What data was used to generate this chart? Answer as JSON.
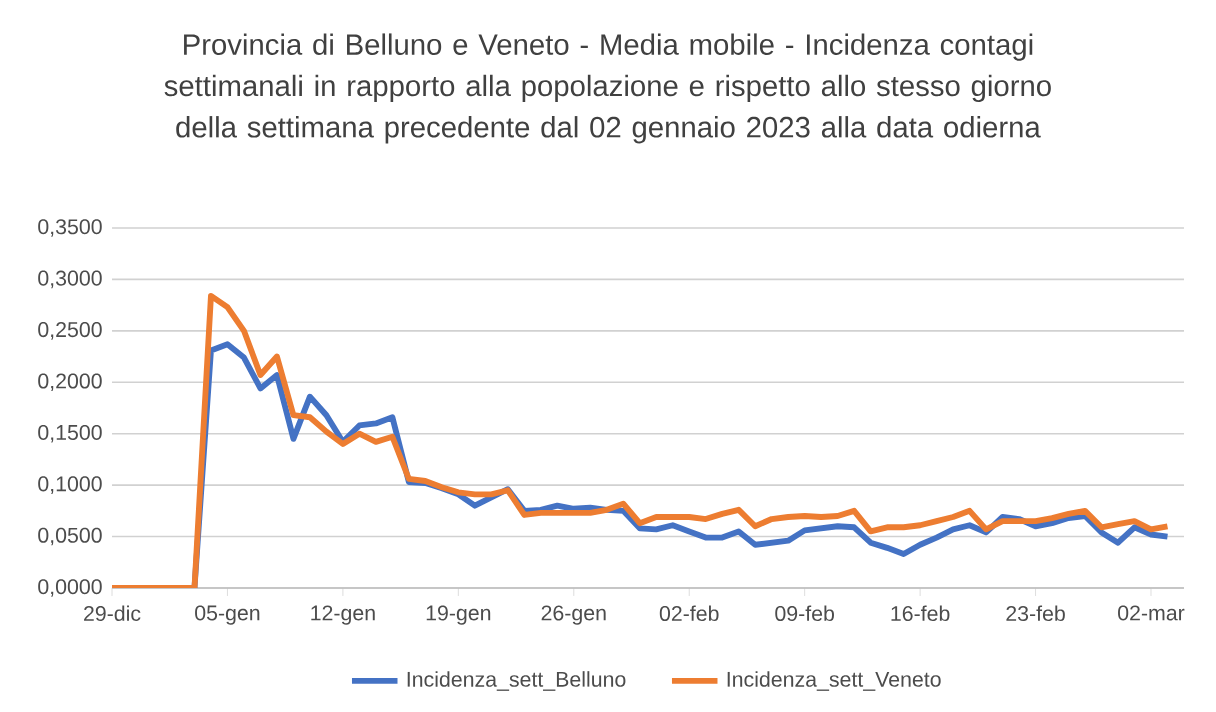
{
  "chart_data": {
    "type": "line",
    "title": "Provincia di Belluno e Veneto -  Media mobile - Incidenza contagi settimanali in rapporto alla popolazione e rispetto allo stesso giorno della settimana precedente dal 02 gennaio 2023 alla data odierna",
    "x": [
      "2022-12-29",
      "2022-12-30",
      "2022-12-31",
      "2023-01-01",
      "2023-01-02",
      "2023-01-03",
      "2023-01-04",
      "2023-01-05",
      "2023-01-06",
      "2023-01-07",
      "2023-01-08",
      "2023-01-09",
      "2023-01-10",
      "2023-01-11",
      "2023-01-12",
      "2023-01-13",
      "2023-01-14",
      "2023-01-15",
      "2023-01-16",
      "2023-01-17",
      "2023-01-18",
      "2023-01-19",
      "2023-01-20",
      "2023-01-21",
      "2023-01-22",
      "2023-01-23",
      "2023-01-24",
      "2023-01-25",
      "2023-01-26",
      "2023-01-27",
      "2023-01-28",
      "2023-01-29",
      "2023-01-30",
      "2023-01-31",
      "2023-02-01",
      "2023-02-02",
      "2023-02-03",
      "2023-02-04",
      "2023-02-05",
      "2023-02-06",
      "2023-02-07",
      "2023-02-08",
      "2023-02-09",
      "2023-02-10",
      "2023-02-11",
      "2023-02-12",
      "2023-02-13",
      "2023-02-14",
      "2023-02-15",
      "2023-02-16",
      "2023-02-17",
      "2023-02-18",
      "2023-02-19",
      "2023-02-20",
      "2023-02-21",
      "2023-02-22",
      "2023-02-23",
      "2023-02-24",
      "2023-02-25",
      "2023-02-26",
      "2023-02-27",
      "2023-02-28",
      "2023-03-01",
      "2023-03-02",
      "2023-03-03"
    ],
    "series": [
      {
        "name": "Incidenza_sett_Belluno",
        "color": "#4472c4",
        "values": [
          null,
          null,
          null,
          null,
          0,
          0,
          0.231,
          0.237,
          0.224,
          0.194,
          0.207,
          0.145,
          0.186,
          0.168,
          0.142,
          0.158,
          0.16,
          0.166,
          0.103,
          0.102,
          0.097,
          0.091,
          0.08,
          0.088,
          0.096,
          0.075,
          0.076,
          0.08,
          0.077,
          0.078,
          0.076,
          0.075,
          0.058,
          0.057,
          0.061,
          0.055,
          0.049,
          0.049,
          0.055,
          0.042,
          0.044,
          0.046,
          0.056,
          0.058,
          0.06,
          0.059,
          0.044,
          0.039,
          0.033,
          0.042,
          0.049,
          0.057,
          0.061,
          0.054,
          0.069,
          0.067,
          0.06,
          0.063,
          0.068,
          0.07,
          0.054,
          0.044,
          0.059,
          0.052,
          0.05
        ]
      },
      {
        "name": "Incidenza_sett_Veneto",
        "color": "#ed7d31",
        "values": [
          0,
          0,
          0,
          0,
          0,
          0,
          0.284,
          0.273,
          0.25,
          0.207,
          0.225,
          0.168,
          0.166,
          0.152,
          0.14,
          0.15,
          0.142,
          0.147,
          0.106,
          0.104,
          0.098,
          0.093,
          0.091,
          0.091,
          0.095,
          0.071,
          0.073,
          0.073,
          0.073,
          0.073,
          0.076,
          0.082,
          0.063,
          0.069,
          0.069,
          0.069,
          0.067,
          0.072,
          0.076,
          0.06,
          0.067,
          0.069,
          0.07,
          0.069,
          0.07,
          0.075,
          0.055,
          0.059,
          0.059,
          0.061,
          0.065,
          0.069,
          0.075,
          0.057,
          0.065,
          0.065,
          0.065,
          0.068,
          0.072,
          0.075,
          0.059,
          0.062,
          0.065,
          0.057,
          0.06
        ]
      }
    ],
    "xlim": [
      "2022-12-29",
      "2023-03-04"
    ],
    "xticks": [
      {
        "value": "2022-12-29",
        "label": "29-dic"
      },
      {
        "value": "2023-01-05",
        "label": "05-gen"
      },
      {
        "value": "2023-01-12",
        "label": "12-gen"
      },
      {
        "value": "2023-01-19",
        "label": "19-gen"
      },
      {
        "value": "2023-01-26",
        "label": "26-gen"
      },
      {
        "value": "2023-02-02",
        "label": "02-feb"
      },
      {
        "value": "2023-02-09",
        "label": "09-feb"
      },
      {
        "value": "2023-02-16",
        "label": "16-feb"
      },
      {
        "value": "2023-02-23",
        "label": "23-feb"
      },
      {
        "value": "2023-03-02",
        "label": "02-mar"
      }
    ],
    "ylim": [
      0,
      0.35
    ],
    "yticks": [
      {
        "value": 0,
        "label": "0,0000"
      },
      {
        "value": 0.05,
        "label": "0,0500"
      },
      {
        "value": 0.1,
        "label": "0,1000"
      },
      {
        "value": 0.15,
        "label": "0,1500"
      },
      {
        "value": 0.2,
        "label": "0,2000"
      },
      {
        "value": 0.25,
        "label": "0,2500"
      },
      {
        "value": 0.3,
        "label": "0,3000"
      },
      {
        "value": 0.35,
        "label": "0,3500"
      }
    ],
    "grid": "y",
    "legend": "bottom"
  }
}
